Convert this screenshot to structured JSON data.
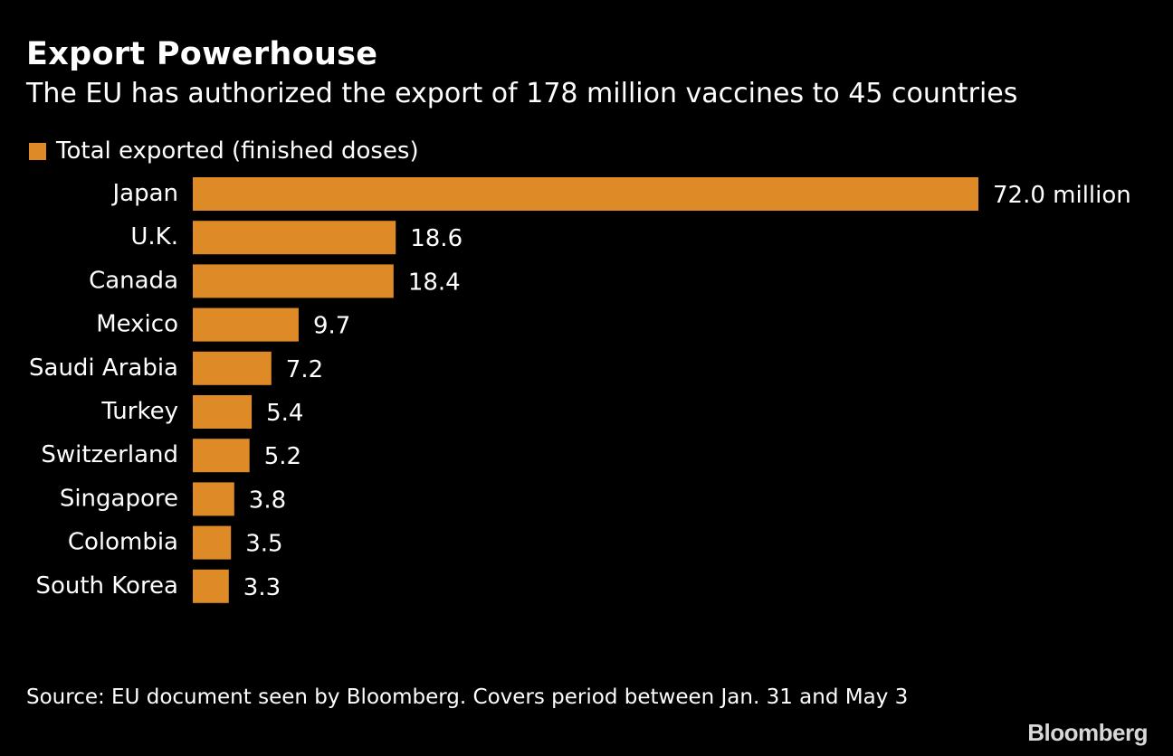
{
  "colors": {
    "bar": "#dd8a27",
    "background": "#000000",
    "text": "#ffffff"
  },
  "header": {
    "title": "Export Powerhouse",
    "subtitle": "The EU has authorized the export of 178 million vaccines to 45 countries"
  },
  "chart_data": {
    "type": "bar",
    "orientation": "horizontal",
    "title": "Export Powerhouse",
    "subtitle": "The EU has authorized the export of 178 million vaccines to 45 countries",
    "legend": [
      "Total exported (finished doses)"
    ],
    "legend_position": "top-left",
    "categories": [
      "Japan",
      "U.K.",
      "Canada",
      "Mexico",
      "Saudi Arabia",
      "Turkey",
      "Switzerland",
      "Singapore",
      "Colombia",
      "South Korea"
    ],
    "values": [
      72.0,
      18.6,
      18.4,
      9.7,
      7.2,
      5.4,
      5.2,
      3.8,
      3.5,
      3.3
    ],
    "value_labels": [
      "72.0 million",
      "18.6",
      "18.4",
      "9.7",
      "7.2",
      "5.4",
      "5.2",
      "3.8",
      "3.5",
      "3.3"
    ],
    "unit": "million doses",
    "xlabel": "",
    "ylabel": "",
    "xlim": [
      0,
      72.0
    ],
    "grid": false
  },
  "footer": {
    "source": "Source: EU document seen by Bloomberg. Covers period between Jan. 31 and May 3",
    "brand": "Bloomberg"
  }
}
